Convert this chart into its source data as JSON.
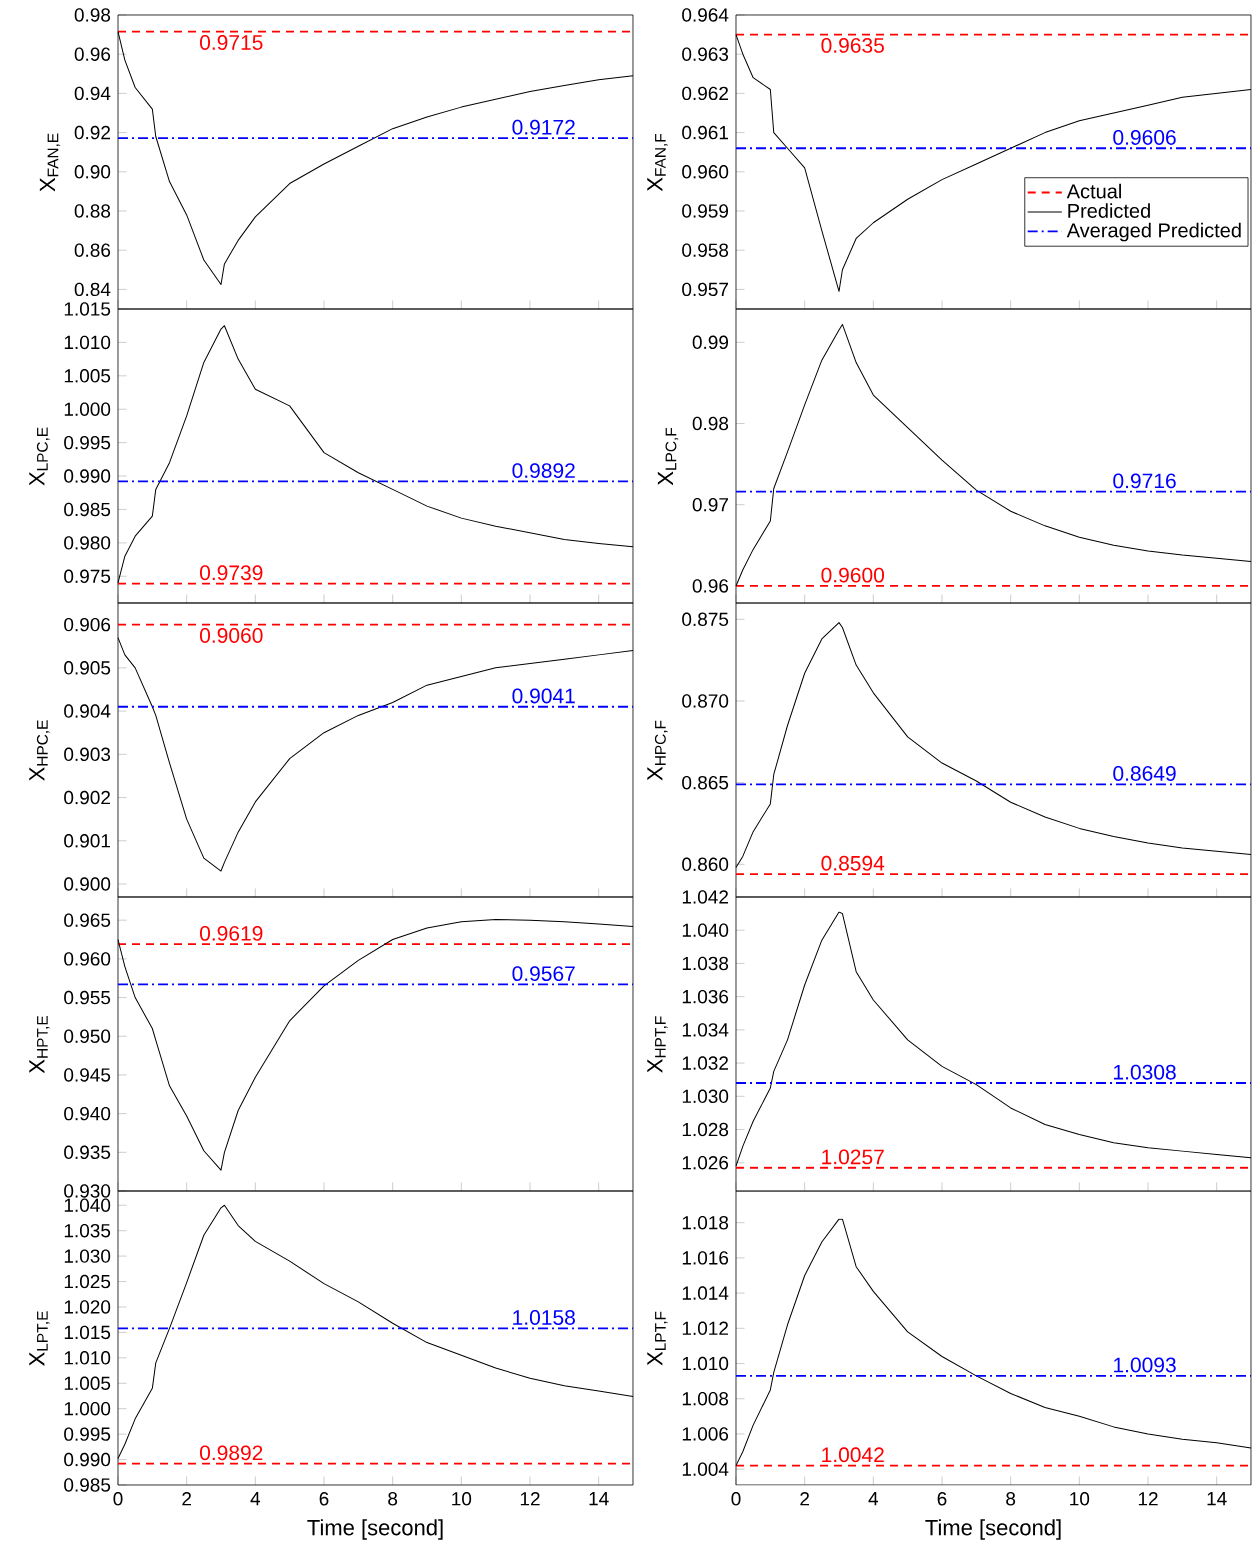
{
  "chart_data": [
    {
      "type": "line",
      "ylabel": "X$_{FAN,E}$",
      "tick_labels": "y",
      "marker": "none",
      "xlim": [
        0,
        15
      ],
      "xticks": [
        0,
        2,
        4,
        6,
        8,
        10,
        12,
        14
      ],
      "ylim": [
        0.83,
        0.98
      ],
      "yticks": [
        0.84,
        0.86,
        0.88,
        {
          "value": 0.9,
          "label": "0.90"
        },
        0.92,
        0.94,
        0.96,
        0.98
      ],
      "x": [
        0,
        0.2,
        0.5,
        1.0,
        1.1,
        1.5,
        2,
        2.5,
        3,
        3.1,
        3.5,
        4,
        5,
        6,
        7,
        8,
        9,
        10,
        11,
        12,
        13,
        14,
        15
      ],
      "series": [
        {
          "color": "#ff0000",
          "line_style": "dashed",
          "values": [
            0.9715,
            0.9715,
            0.9715,
            0.9715,
            0.9715,
            0.9715,
            0.9715,
            0.9715,
            0.9715,
            0.9715,
            0.9715,
            0.9715,
            0.9715,
            0.9715,
            0.9715,
            0.9715,
            0.9715,
            0.9715,
            0.9715,
            0.9715,
            0.9715,
            0.9715,
            0.9715
          ]
        },
        {
          "color": "#000000",
          "line_style": "solid",
          "values": [
            0.9715,
            0.957,
            0.943,
            0.932,
            0.918,
            0.895,
            0.878,
            0.855,
            0.8425,
            0.853,
            0.865,
            0.877,
            0.894,
            0.904,
            0.913,
            0.922,
            0.928,
            0.933,
            0.937,
            0.941,
            0.944,
            0.947,
            0.949
          ]
        },
        {
          "color": "#0000ff",
          "line_style": "dashdot",
          "values": [
            0.9172,
            0.9172,
            0.9172,
            0.9172,
            0.9172,
            0.9172,
            0.9172,
            0.9172,
            0.9172,
            0.9172,
            0.9172,
            0.9172,
            0.9172,
            0.9172,
            0.9172,
            0.9172,
            0.9172,
            0.9172,
            0.9172,
            0.9172,
            0.9172,
            0.9172,
            0.9172
          ]
        }
      ],
      "annotations": [
        {
          "text": "0.9715",
          "x": 3.3,
          "y": 0.9715
        },
        {
          "text": "0.9172",
          "x": 12.4,
          "y": 0.9172
        }
      ]
    },
    {
      "type": "line",
      "ylabel": "X$_{FAN,F}$",
      "tick_labels": "y",
      "marker": "none",
      "legend": "right",
      "xlim": [
        0,
        15
      ],
      "xticks": [
        0,
        2,
        4,
        6,
        8,
        10,
        12,
        14
      ],
      "ylim": [
        0.9565,
        0.964
      ],
      "yticks": [
        0.957,
        0.958,
        0.959,
        {
          "value": 0.96,
          "label": "0.960"
        },
        0.961,
        0.962,
        0.963,
        0.964
      ],
      "x": [
        0,
        0.2,
        0.5,
        1.0,
        1.1,
        1.5,
        2,
        2.5,
        3,
        3.1,
        3.5,
        4,
        5,
        6,
        7,
        8,
        9,
        10,
        11,
        12,
        13,
        14,
        15
      ],
      "series": [
        {
          "name": "Actual",
          "color": "#ff0000",
          "line_style": "dashed",
          "values": [
            0.9635,
            0.9635,
            0.9635,
            0.9635,
            0.9635,
            0.9635,
            0.9635,
            0.9635,
            0.9635,
            0.9635,
            0.9635,
            0.9635,
            0.9635,
            0.9635,
            0.9635,
            0.9635,
            0.9635,
            0.9635,
            0.9635,
            0.9635,
            0.9635,
            0.9635,
            0.9635
          ]
        },
        {
          "name": "Predicted",
          "color": "#000000",
          "line_style": "solid",
          "values": [
            0.9635,
            0.963,
            0.9624,
            0.9621,
            0.961,
            0.9606,
            0.9601,
            0.9585,
            0.95695,
            0.9575,
            0.9583,
            0.9587,
            0.9593,
            0.9598,
            0.9602,
            0.9606,
            0.961,
            0.9613,
            0.9615,
            0.9617,
            0.9619,
            0.962,
            0.9621
          ]
        },
        {
          "name": "Averaged Predicted",
          "color": "#0000ff",
          "line_style": "dashdot",
          "values": [
            0.9606,
            0.9606,
            0.9606,
            0.9606,
            0.9606,
            0.9606,
            0.9606,
            0.9606,
            0.9606,
            0.9606,
            0.9606,
            0.9606,
            0.9606,
            0.9606,
            0.9606,
            0.9606,
            0.9606,
            0.9606,
            0.9606,
            0.9606,
            0.9606,
            0.9606,
            0.9606
          ]
        }
      ],
      "annotations": [
        {
          "text": "0.9635",
          "x": 3.4,
          "y": 0.9635
        },
        {
          "text": "0.9606",
          "x": 11.9,
          "y": 0.9606
        }
      ]
    },
    {
      "type": "line",
      "ylabel": "X$_{LPC,E}$",
      "tick_labels": "y",
      "marker": "none",
      "xlim": [
        0,
        15
      ],
      "xticks": [
        0,
        2,
        4,
        6,
        8,
        10,
        12,
        14
      ],
      "ylim": [
        0.971,
        1.015
      ],
      "yticks": [
        0.975,
        {
          "value": 0.98,
          "label": "0.980"
        },
        0.985,
        {
          "value": 0.99,
          "label": "0.990"
        },
        0.995,
        {
          "value": 1,
          "label": "1.000"
        },
        1.005,
        {
          "value": 1.01,
          "label": "1.010"
        },
        1.015
      ],
      "x": [
        0,
        0.2,
        0.5,
        1.0,
        1.1,
        1.5,
        2,
        2.5,
        3,
        3.1,
        3.5,
        4,
        5,
        6,
        7,
        8,
        9,
        10,
        11,
        12,
        13,
        14,
        15
      ],
      "series": [
        {
          "color": "#ff0000",
          "line_style": "dashed",
          "values": [
            0.9739,
            0.9739,
            0.9739,
            0.9739,
            0.9739,
            0.9739,
            0.9739,
            0.9739,
            0.9739,
            0.9739,
            0.9739,
            0.9739,
            0.9739,
            0.9739,
            0.9739,
            0.9739,
            0.9739,
            0.9739,
            0.9739,
            0.9739,
            0.9739,
            0.9739,
            0.9739
          ]
        },
        {
          "color": "#000000",
          "line_style": "solid",
          "values": [
            0.974,
            0.978,
            0.981,
            0.984,
            0.988,
            0.992,
            0.999,
            1.007,
            1.012,
            1.0125,
            1.0075,
            1.003,
            1.0005,
            0.9935,
            0.9905,
            0.988,
            0.9855,
            0.9837,
            0.9825,
            0.9815,
            0.9805,
            0.9799,
            0.9794
          ]
        },
        {
          "color": "#0000ff",
          "line_style": "dashdot",
          "values": [
            0.9892,
            0.9892,
            0.9892,
            0.9892,
            0.9892,
            0.9892,
            0.9892,
            0.9892,
            0.9892,
            0.9892,
            0.9892,
            0.9892,
            0.9892,
            0.9892,
            0.9892,
            0.9892,
            0.9892,
            0.9892,
            0.9892,
            0.9892,
            0.9892,
            0.9892,
            0.9892
          ]
        }
      ],
      "annotations": [
        {
          "text": "0.9739",
          "x": 3.3,
          "y": 0.9739
        },
        {
          "text": "0.9892",
          "x": 12.4,
          "y": 0.9892
        }
      ]
    },
    {
      "type": "line",
      "ylabel": "X$_{LPC,F}$",
      "tick_labels": "y",
      "marker": "none",
      "xlim": [
        0,
        15
      ],
      "xticks": [
        0,
        2,
        4,
        6,
        8,
        10,
        12,
        14
      ],
      "ylim": [
        0.9579,
        0.9941
      ],
      "yticks": [
        0.96,
        0.97,
        0.98,
        0.99
      ],
      "x": [
        0,
        0.2,
        0.5,
        1.0,
        1.1,
        1.5,
        2,
        2.5,
        3,
        3.1,
        3.5,
        4,
        5,
        6,
        7,
        8,
        9,
        10,
        11,
        12,
        13,
        14,
        15
      ],
      "series": [
        {
          "color": "#ff0000",
          "line_style": "dashed",
          "values": [
            0.96,
            0.96,
            0.96,
            0.96,
            0.96,
            0.96,
            0.96,
            0.96,
            0.96,
            0.96,
            0.96,
            0.96,
            0.96,
            0.96,
            0.96,
            0.96,
            0.96,
            0.96,
            0.96,
            0.96,
            0.96,
            0.96,
            0.96
          ]
        },
        {
          "color": "#000000",
          "line_style": "solid",
          "values": [
            0.96,
            0.962,
            0.9645,
            0.968,
            0.972,
            0.9765,
            0.9823,
            0.9878,
            0.9915,
            0.9922,
            0.9875,
            0.9835,
            0.9795,
            0.9755,
            0.9718,
            0.9692,
            0.9674,
            0.966,
            0.965,
            0.9643,
            0.9638,
            0.9634,
            0.963
          ]
        },
        {
          "color": "#0000ff",
          "line_style": "dashdot",
          "values": [
            0.9716,
            0.9716,
            0.9716,
            0.9716,
            0.9716,
            0.9716,
            0.9716,
            0.9716,
            0.9716,
            0.9716,
            0.9716,
            0.9716,
            0.9716,
            0.9716,
            0.9716,
            0.9716,
            0.9716,
            0.9716,
            0.9716,
            0.9716,
            0.9716,
            0.9716,
            0.9716
          ]
        }
      ],
      "annotations": [
        {
          "text": "0.9600",
          "x": 3.4,
          "y": 0.96
        },
        {
          "text": "0.9716",
          "x": 11.9,
          "y": 0.9716
        }
      ]
    },
    {
      "type": "line",
      "ylabel": "X$_{HPC,E}$",
      "tick_labels": "y",
      "marker": "none",
      "xlim": [
        0,
        15
      ],
      "xticks": [
        0,
        2,
        4,
        6,
        8,
        10,
        12,
        14
      ],
      "ylim": [
        0.8997,
        0.9065
      ],
      "yticks": [
        {
          "value": 0.9,
          "label": "0.900"
        },
        0.901,
        0.902,
        0.903,
        0.904,
        0.905,
        0.906
      ],
      "x": [
        0,
        0.2,
        0.5,
        1.0,
        1.1,
        1.5,
        2,
        2.5,
        3,
        3.1,
        3.5,
        4,
        5,
        6,
        7,
        8,
        9,
        10,
        11,
        12,
        13,
        14,
        15
      ],
      "series": [
        {
          "color": "#ff0000",
          "line_style": "dashed",
          "values": [
            0.906,
            0.906,
            0.906,
            0.906,
            0.906,
            0.906,
            0.906,
            0.906,
            0.906,
            0.906,
            0.906,
            0.906,
            0.906,
            0.906,
            0.906,
            0.906,
            0.906,
            0.906,
            0.906,
            0.906,
            0.906,
            0.906,
            0.906
          ]
        },
        {
          "color": "#000000",
          "line_style": "solid",
          "values": [
            0.9057,
            0.9053,
            0.905,
            0.9041,
            0.9039,
            0.9028,
            0.9015,
            0.9006,
            0.9003,
            0.9005,
            0.9012,
            0.9019,
            0.9029,
            0.9035,
            0.9039,
            0.9042,
            0.9046,
            0.9048,
            0.905,
            0.9051,
            0.9052,
            0.9053,
            0.9054
          ]
        },
        {
          "color": "#0000ff",
          "line_style": "dashdot",
          "values": [
            0.9041,
            0.9041,
            0.9041,
            0.9041,
            0.9041,
            0.9041,
            0.9041,
            0.9041,
            0.9041,
            0.9041,
            0.9041,
            0.9041,
            0.9041,
            0.9041,
            0.9041,
            0.9041,
            0.9041,
            0.9041,
            0.9041,
            0.9041,
            0.9041,
            0.9041,
            0.9041
          ]
        }
      ],
      "annotations": [
        {
          "text": "0.9060",
          "x": 3.3,
          "y": 0.906
        },
        {
          "text": "0.9041",
          "x": 12.4,
          "y": 0.9041
        }
      ]
    },
    {
      "type": "line",
      "ylabel": "X$_{HPC,F}$",
      "tick_labels": "y",
      "marker": "none",
      "xlim": [
        0,
        15
      ],
      "xticks": [
        0,
        2,
        4,
        6,
        8,
        10,
        12,
        14
      ],
      "ylim": [
        0.858,
        0.876
      ],
      "yticks": [
        {
          "value": 0.86,
          "label": "0.860"
        },
        0.865,
        {
          "value": 0.87,
          "label": "0.870"
        },
        0.875
      ],
      "x": [
        0,
        0.2,
        0.5,
        1.0,
        1.1,
        1.5,
        2,
        2.5,
        3,
        3.1,
        3.5,
        4,
        5,
        6,
        7,
        8,
        9,
        10,
        11,
        12,
        13,
        14,
        15
      ],
      "series": [
        {
          "color": "#ff0000",
          "line_style": "dashed",
          "values": [
            0.8594,
            0.8594,
            0.8594,
            0.8594,
            0.8594,
            0.8594,
            0.8594,
            0.8594,
            0.8594,
            0.8594,
            0.8594,
            0.8594,
            0.8594,
            0.8594,
            0.8594,
            0.8594,
            0.8594,
            0.8594,
            0.8594,
            0.8594,
            0.8594,
            0.8594,
            0.8594
          ]
        },
        {
          "color": "#000000",
          "line_style": "solid",
          "values": [
            0.8598,
            0.8605,
            0.862,
            0.8637,
            0.8655,
            0.8685,
            0.8717,
            0.8738,
            0.8748,
            0.8745,
            0.8722,
            0.8705,
            0.8678,
            0.8662,
            0.8651,
            0.8638,
            0.8629,
            0.8622,
            0.8617,
            0.8613,
            0.861,
            0.8608,
            0.8606
          ]
        },
        {
          "color": "#0000ff",
          "line_style": "dashdot",
          "values": [
            0.8649,
            0.8649,
            0.8649,
            0.8649,
            0.8649,
            0.8649,
            0.8649,
            0.8649,
            0.8649,
            0.8649,
            0.8649,
            0.8649,
            0.8649,
            0.8649,
            0.8649,
            0.8649,
            0.8649,
            0.8649,
            0.8649,
            0.8649,
            0.8649,
            0.8649,
            0.8649
          ]
        }
      ],
      "annotations": [
        {
          "text": "0.8594",
          "x": 3.4,
          "y": 0.8594
        },
        {
          "text": "0.8649",
          "x": 11.9,
          "y": 0.8649
        }
      ]
    },
    {
      "type": "line",
      "ylabel": "X$_{HPT,E}$",
      "tick_labels": "y",
      "marker": "none",
      "xlim": [
        0,
        15
      ],
      "xticks": [
        0,
        2,
        4,
        6,
        8,
        10,
        12,
        14
      ],
      "ylim": [
        0.93,
        0.968
      ],
      "yticks": [
        {
          "value": 0.93,
          "label": "0.930"
        },
        0.935,
        {
          "value": 0.94,
          "label": "0.940"
        },
        0.945,
        {
          "value": 0.95,
          "label": "0.950"
        },
        0.955,
        {
          "value": 0.96,
          "label": "0.960"
        },
        0.965
      ],
      "x": [
        0,
        0.2,
        0.5,
        1.0,
        1.1,
        1.5,
        2,
        2.5,
        3,
        3.1,
        3.5,
        4,
        5,
        6,
        7,
        8,
        9,
        10,
        11,
        12,
        13,
        14,
        15
      ],
      "series": [
        {
          "color": "#ff0000",
          "line_style": "dashed",
          "values": [
            0.9619,
            0.9619,
            0.9619,
            0.9619,
            0.9619,
            0.9619,
            0.9619,
            0.9619,
            0.9619,
            0.9619,
            0.9619,
            0.9619,
            0.9619,
            0.9619,
            0.9619,
            0.9619,
            0.9619,
            0.9619,
            0.9619,
            0.9619,
            0.9619,
            0.9619,
            0.9619
          ]
        },
        {
          "color": "#000000",
          "line_style": "solid",
          "values": [
            0.9625,
            0.959,
            0.955,
            0.951,
            0.9495,
            0.9436,
            0.9397,
            0.9352,
            0.9327,
            0.935,
            0.9404,
            0.9447,
            0.952,
            0.9565,
            0.9598,
            0.9625,
            0.964,
            0.9648,
            0.9651,
            0.965,
            0.9648,
            0.9645,
            0.9642
          ]
        },
        {
          "color": "#0000ff",
          "line_style": "dashdot",
          "values": [
            0.9567,
            0.9567,
            0.9567,
            0.9567,
            0.9567,
            0.9567,
            0.9567,
            0.9567,
            0.9567,
            0.9567,
            0.9567,
            0.9567,
            0.9567,
            0.9567,
            0.9567,
            0.9567,
            0.9567,
            0.9567,
            0.9567,
            0.9567,
            0.9567,
            0.9567,
            0.9567
          ]
        }
      ],
      "annotations": [
        {
          "text": "0.9619",
          "x": 3.3,
          "y": 0.9619
        },
        {
          "text": "0.9567",
          "x": 12.4,
          "y": 0.9567
        }
      ]
    },
    {
      "type": "line",
      "ylabel": "X$_{HPT,F}$",
      "tick_labels": "y",
      "marker": "none",
      "xlim": [
        0,
        15
      ],
      "xticks": [
        0,
        2,
        4,
        6,
        8,
        10,
        12,
        14
      ],
      "ylim": [
        1.0243,
        1.042
      ],
      "yticks": [
        1.026,
        1.028,
        {
          "value": 1.03,
          "label": "1.030"
        },
        1.032,
        1.034,
        1.036,
        1.038,
        {
          "value": 1.04,
          "label": "1.040"
        },
        1.042
      ],
      "x": [
        0,
        0.2,
        0.5,
        1.0,
        1.1,
        1.5,
        2,
        2.5,
        3,
        3.1,
        3.5,
        4,
        5,
        6,
        7,
        8,
        9,
        10,
        11,
        12,
        13,
        14,
        15
      ],
      "series": [
        {
          "color": "#ff0000",
          "line_style": "dashed",
          "values": [
            1.0257,
            1.0257,
            1.0257,
            1.0257,
            1.0257,
            1.0257,
            1.0257,
            1.0257,
            1.0257,
            1.0257,
            1.0257,
            1.0257,
            1.0257,
            1.0257,
            1.0257,
            1.0257,
            1.0257,
            1.0257,
            1.0257,
            1.0257,
            1.0257,
            1.0257,
            1.0257
          ]
        },
        {
          "color": "#000000",
          "line_style": "solid",
          "values": [
            1.0258,
            1.027,
            1.0285,
            1.0305,
            1.0315,
            1.0334,
            1.0367,
            1.0394,
            1.0411,
            1.041,
            1.0375,
            1.0358,
            1.0334,
            1.0318,
            1.0307,
            1.0293,
            1.0283,
            1.0277,
            1.0272,
            1.0269,
            1.0267,
            1.0265,
            1.0263
          ]
        },
        {
          "color": "#0000ff",
          "line_style": "dashdot",
          "values": [
            1.0308,
            1.0308,
            1.0308,
            1.0308,
            1.0308,
            1.0308,
            1.0308,
            1.0308,
            1.0308,
            1.0308,
            1.0308,
            1.0308,
            1.0308,
            1.0308,
            1.0308,
            1.0308,
            1.0308,
            1.0308,
            1.0308,
            1.0308,
            1.0308,
            1.0308,
            1.0308
          ]
        }
      ],
      "annotations": [
        {
          "text": "1.0257",
          "x": 3.4,
          "y": 1.0257
        },
        {
          "text": "1.0308",
          "x": 11.9,
          "y": 1.0308
        }
      ]
    },
    {
      "type": "line",
      "ylabel": "X$_{LPT,E}$",
      "xlabel": "Time [second]",
      "marker": "none",
      "xlim": [
        0,
        15
      ],
      "xticks": [
        0,
        2,
        4,
        6,
        8,
        10,
        12,
        14
      ],
      "ylim": [
        0.985,
        1.0428
      ],
      "yticks": [
        0.985,
        {
          "value": 0.99,
          "label": "0.990"
        },
        0.995,
        {
          "value": 1,
          "label": "1.000"
        },
        1.005,
        {
          "value": 1.01,
          "label": "1.010"
        },
        1.015,
        {
          "value": 1.02,
          "label": "1.020"
        },
        1.025,
        {
          "value": 1.03,
          "label": "1.030"
        },
        1.035,
        {
          "value": 1.04,
          "label": "1.040"
        }
      ],
      "x": [
        0,
        0.2,
        0.5,
        1.0,
        1.1,
        1.5,
        2,
        2.5,
        3,
        3.1,
        3.5,
        4,
        5,
        6,
        7,
        8,
        9,
        10,
        11,
        12,
        13,
        14,
        15
      ],
      "series": [
        {
          "color": "#ff0000",
          "line_style": "dashed",
          "values": [
            0.9892,
            0.9892,
            0.9892,
            0.9892,
            0.9892,
            0.9892,
            0.9892,
            0.9892,
            0.9892,
            0.9892,
            0.9892,
            0.9892,
            0.9892,
            0.9892,
            0.9892,
            0.9892,
            0.9892,
            0.9892,
            0.9892,
            0.9892,
            0.9892,
            0.9892,
            0.9892
          ]
        },
        {
          "color": "#000000",
          "line_style": "solid",
          "values": [
            0.9902,
            0.993,
            0.998,
            1.004,
            1.009,
            1.0158,
            1.0248,
            1.0341,
            1.0395,
            1.04,
            1.036,
            1.0329,
            1.029,
            1.0246,
            1.021,
            1.0168,
            1.013,
            1.0105,
            1.008,
            1.006,
            1.0045,
            1.0035,
            1.0024
          ]
        },
        {
          "color": "#0000ff",
          "line_style": "dashdot",
          "values": [
            1.0158,
            1.0158,
            1.0158,
            1.0158,
            1.0158,
            1.0158,
            1.0158,
            1.0158,
            1.0158,
            1.0158,
            1.0158,
            1.0158,
            1.0158,
            1.0158,
            1.0158,
            1.0158,
            1.0158,
            1.0158,
            1.0158,
            1.0158,
            1.0158,
            1.0158,
            1.0158
          ]
        }
      ],
      "annotations": [
        {
          "text": "0.9892",
          "x": 3.3,
          "y": 0.9892
        },
        {
          "text": "1.0158",
          "x": 12.4,
          "y": 1.0158
        }
      ]
    },
    {
      "type": "line",
      "ylabel": "X$_{LPT,F}$",
      "xlabel": "Time [second]",
      "marker": "none",
      "xlim": [
        0,
        15
      ],
      "xticks": [
        0,
        2,
        4,
        6,
        8,
        10,
        12,
        14
      ],
      "ylim": [
        1.0031,
        1.0198
      ],
      "yticks": [
        1.004,
        1.006,
        1.008,
        {
          "value": 1.01,
          "label": "1.010"
        },
        1.012,
        1.014,
        1.016,
        1.018
      ],
      "x": [
        0,
        0.2,
        0.5,
        1.0,
        1.1,
        1.5,
        2,
        2.5,
        3,
        3.1,
        3.5,
        4,
        5,
        6,
        7,
        8,
        9,
        10,
        11,
        12,
        13,
        14,
        15
      ],
      "series": [
        {
          "color": "#ff0000",
          "line_style": "dashed",
          "values": [
            1.0042,
            1.0042,
            1.0042,
            1.0042,
            1.0042,
            1.0042,
            1.0042,
            1.0042,
            1.0042,
            1.0042,
            1.0042,
            1.0042,
            1.0042,
            1.0042,
            1.0042,
            1.0042,
            1.0042,
            1.0042,
            1.0042,
            1.0042,
            1.0042,
            1.0042,
            1.0042
          ]
        },
        {
          "color": "#000000",
          "line_style": "solid",
          "values": [
            1.0042,
            1.005,
            1.0065,
            1.0085,
            1.0095,
            1.0122,
            1.015,
            1.0169,
            1.0182,
            1.0182,
            1.0155,
            1.0141,
            1.0118,
            1.0104,
            1.0093,
            1.0083,
            1.0075,
            1.007,
            1.0064,
            1.006,
            1.0057,
            1.0055,
            1.0052
          ]
        },
        {
          "color": "#0000ff",
          "line_style": "dashdot",
          "values": [
            1.0093,
            1.0093,
            1.0093,
            1.0093,
            1.0093,
            1.0093,
            1.0093,
            1.0093,
            1.0093,
            1.0093,
            1.0093,
            1.0093,
            1.0093,
            1.0093,
            1.0093,
            1.0093,
            1.0093,
            1.0093,
            1.0093,
            1.0093,
            1.0093,
            1.0093,
            1.0093
          ]
        }
      ],
      "annotations": [
        {
          "text": "1.0042",
          "x": 3.4,
          "y": 1.0042
        },
        {
          "text": "1.0093",
          "x": 11.9,
          "y": 1.0093
        }
      ]
    }
  ]
}
